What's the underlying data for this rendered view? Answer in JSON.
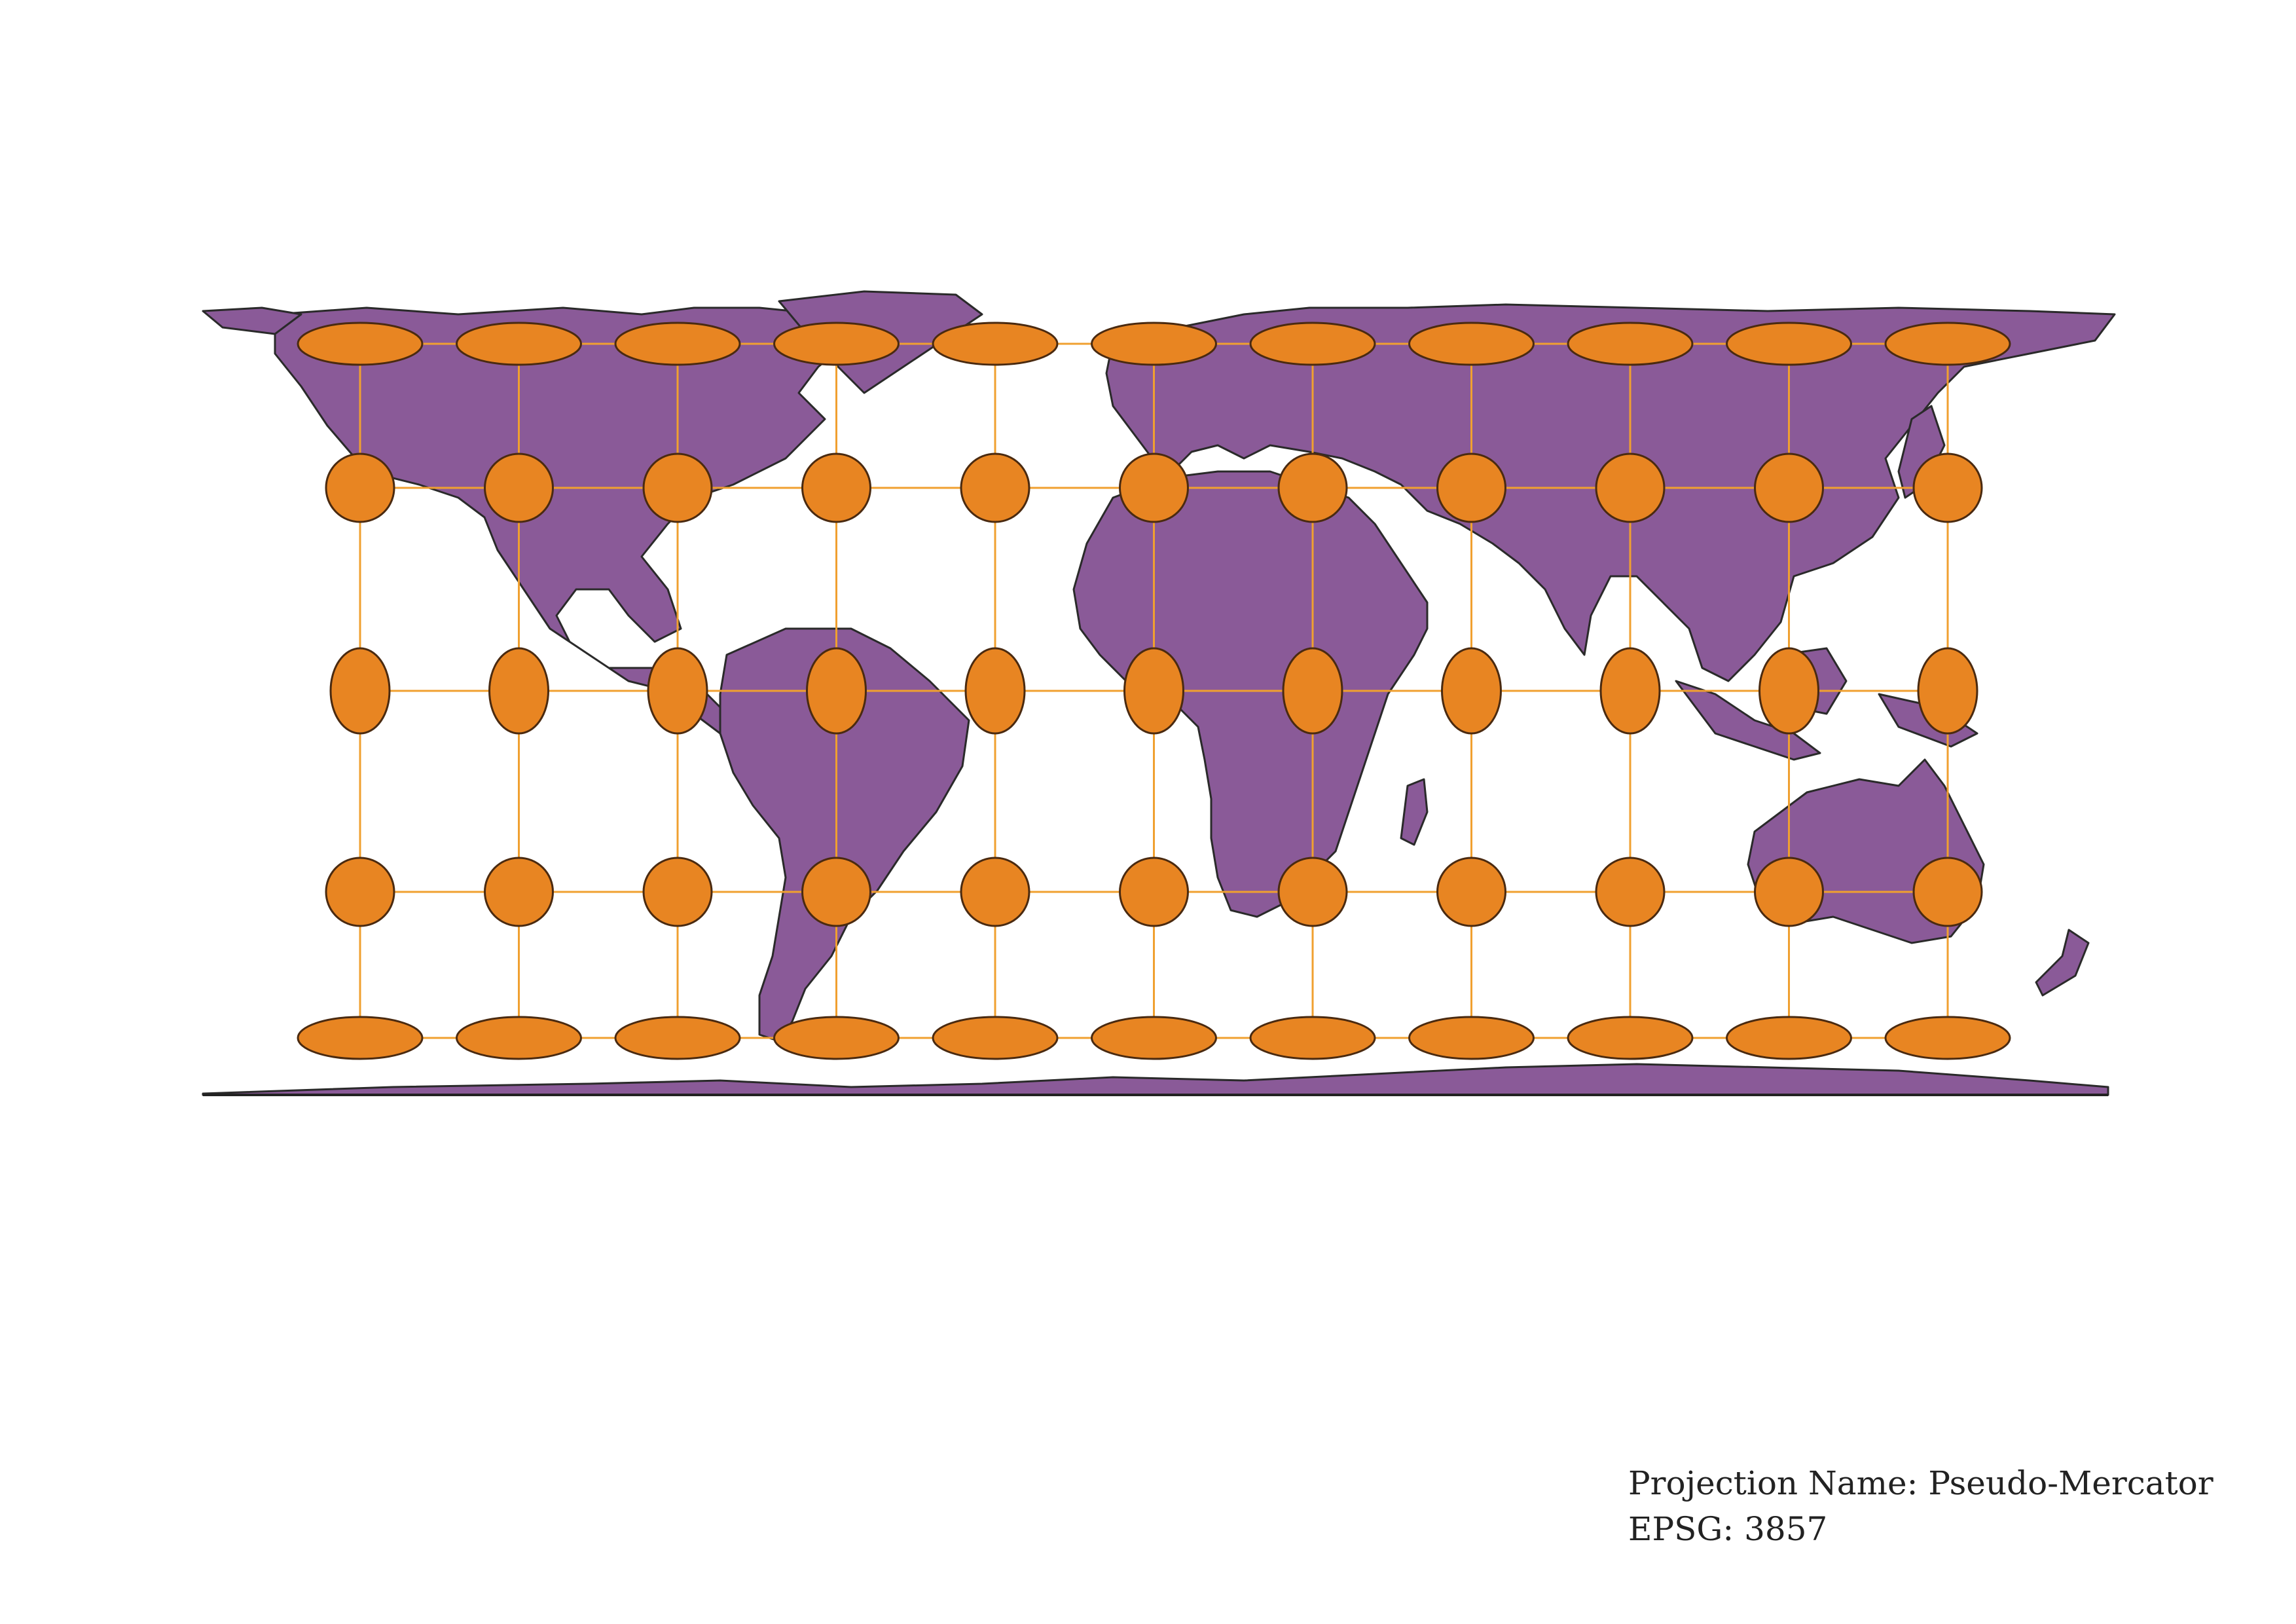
{
  "projection": {
    "name_line": "Projection Name: Pseudo-Mercator",
    "epsg_line": "EPSG: 3857"
  },
  "colors": {
    "land": "#8a5a98",
    "land_outline": "#2a2a2a",
    "indicatrix_fill": "#e88522",
    "indicatrix_outline": "#4a2a10",
    "graticule": "#f0a030",
    "background": "#ffffff"
  },
  "indicatrix": {
    "columns": 11,
    "rows": 5,
    "row_shapes": [
      "wide-flat",
      "circle",
      "tall",
      "circle",
      "wide-flat"
    ]
  }
}
